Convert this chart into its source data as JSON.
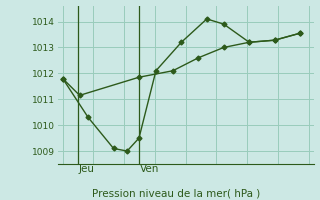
{
  "bg_color": "#cce8e4",
  "grid_color": "#99ccbb",
  "line_color": "#2d5a1b",
  "title": "Pression niveau de la mer( hPa )",
  "xlabel_jeu": "Jeu",
  "xlabel_ven": "Ven",
  "ylim": [
    1008.5,
    1014.6
  ],
  "yticks": [
    1009,
    1010,
    1011,
    1012,
    1013,
    1014
  ],
  "line1_x": [
    0,
    1.0,
    4.5,
    6.5,
    8.0,
    9.5,
    11.0,
    12.5,
    14.0
  ],
  "line1_y": [
    1011.8,
    1011.15,
    1011.85,
    1012.1,
    1012.6,
    1013.0,
    1013.2,
    1013.28,
    1013.55
  ],
  "line2_x": [
    0,
    1.5,
    3.0,
    3.8,
    4.5,
    5.5,
    7.0,
    8.5,
    9.5,
    11.0,
    12.5,
    14.0
  ],
  "line2_y": [
    1011.8,
    1010.3,
    1009.1,
    1009.0,
    1009.5,
    1012.1,
    1013.2,
    1014.1,
    1013.9,
    1013.2,
    1013.28,
    1013.55
  ],
  "vline_x1": 0.9,
  "vline_x2": 4.5,
  "xmin": -0.3,
  "xmax": 14.8,
  "ytick_fontsize": 6.5,
  "label_fontsize": 7.5,
  "title_fontsize": 7.5
}
